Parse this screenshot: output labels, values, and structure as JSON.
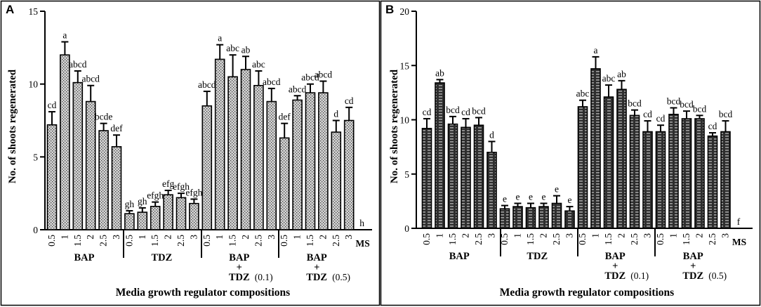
{
  "chart_data": [
    {
      "type": "bar",
      "panel": "A",
      "ylabel": "No. of shoots regenerated",
      "xlabel": "Media growth regulator compositions",
      "ylim": [
        0,
        15
      ],
      "yticks": [
        "0",
        "5",
        "10",
        "15"
      ],
      "ytick_values": [
        0,
        5,
        10,
        15
      ],
      "categories": [
        "0.5",
        "1",
        "1.5",
        "2",
        "2.5",
        "3",
        "0.5",
        "1",
        "1.5",
        "2",
        "2.5",
        "3",
        "0.5",
        "1",
        "1.5",
        "2",
        "2.5",
        "3",
        "0.5",
        "1",
        "1.5",
        "2",
        "2.5",
        "3",
        "MS"
      ],
      "values": [
        7.2,
        12.0,
        10.1,
        8.8,
        6.8,
        5.7,
        1.1,
        1.2,
        1.6,
        2.4,
        2.2,
        1.8,
        8.5,
        11.7,
        10.5,
        11.0,
        9.9,
        8.8,
        6.3,
        8.9,
        9.4,
        9.4,
        6.7,
        7.5,
        0.0
      ],
      "errors": [
        0.9,
        0.9,
        0.8,
        1.1,
        0.5,
        0.8,
        0.2,
        0.3,
        0.3,
        0.3,
        0.3,
        0.3,
        1.0,
        1.0,
        1.5,
        0.9,
        1.0,
        0.9,
        1.0,
        0.3,
        0.6,
        0.8,
        0.8,
        0.9,
        0.0
      ],
      "letters": [
        "cd",
        "a",
        "abcd",
        "abcd",
        "bcde",
        "def",
        "gh",
        "gh",
        "efgh",
        "efg",
        "efgh",
        "efgh",
        "abcd",
        "a",
        "abc",
        "ab",
        "abc",
        "abcd",
        "def",
        "abcd",
        "abcd",
        "abcd",
        "d",
        "cd",
        "h"
      ],
      "groups": [
        {
          "lines": [
            "BAP"
          ]
        },
        {
          "lines": [
            "TDZ"
          ]
        },
        {
          "lines": [
            "BAP",
            "+",
            "TDZ"
          ],
          "conc": "(0.1)"
        },
        {
          "lines": [
            "BAP",
            "+",
            "TDZ"
          ],
          "conc": "(0.5)"
        }
      ]
    },
    {
      "type": "bar",
      "panel": "B",
      "ylabel": "No. of shoots regenerated",
      "xlabel": "Media growth regulator compositions",
      "ylim": [
        0,
        20
      ],
      "yticks": [
        "0",
        "5",
        "10",
        "15",
        "20"
      ],
      "ytick_values": [
        0,
        5,
        10,
        15,
        20
      ],
      "categories": [
        "0.5",
        "1",
        "1.5",
        "2",
        "2.5",
        "3",
        "0.5",
        "1",
        "1.5",
        "2",
        "2.5",
        "3",
        "0.5",
        "1",
        "1.5",
        "2",
        "2.5",
        "3",
        "0.5",
        "1",
        "1.5",
        "2",
        "2.5",
        "3",
        "MS"
      ],
      "values": [
        9.2,
        13.4,
        9.6,
        9.3,
        9.5,
        7.0,
        1.8,
        2.0,
        1.9,
        2.0,
        2.3,
        1.6,
        11.2,
        14.7,
        12.1,
        12.8,
        10.4,
        8.9,
        8.9,
        10.5,
        10.1,
        10.1,
        8.5,
        8.9,
        0.0
      ],
      "errors": [
        0.9,
        0.3,
        0.7,
        0.8,
        0.7,
        1.0,
        0.3,
        0.3,
        0.4,
        0.3,
        0.7,
        0.4,
        0.6,
        1.1,
        1.1,
        0.8,
        0.5,
        1.0,
        0.6,
        0.6,
        0.7,
        0.3,
        0.3,
        1.0,
        0.0
      ],
      "letters": [
        "cd",
        "ab",
        "bcd",
        "cd",
        "bcd",
        "d",
        "e",
        "e",
        "e",
        "e",
        "e",
        "e",
        "abc",
        "a",
        "abc",
        "ab",
        "bcd",
        "cd",
        "cd",
        "bcd",
        "bcd",
        "bcd",
        "cd",
        "bcd",
        "f"
      ],
      "groups": [
        {
          "lines": [
            "BAP"
          ]
        },
        {
          "lines": [
            "TDZ"
          ]
        },
        {
          "lines": [
            "BAP",
            "+",
            "TDZ"
          ],
          "conc": "(0.1)"
        },
        {
          "lines": [
            "BAP",
            "+",
            "TDZ"
          ],
          "conc": "(0.5)"
        }
      ]
    }
  ],
  "colors": {
    "frame": "#000000",
    "bar_a_fill": "#d2d2d2",
    "bar_a_pattern": "#3a3a3a",
    "bar_b_fill": "#2e2e2e",
    "bar_b_pattern": "#e6e6e6"
  }
}
